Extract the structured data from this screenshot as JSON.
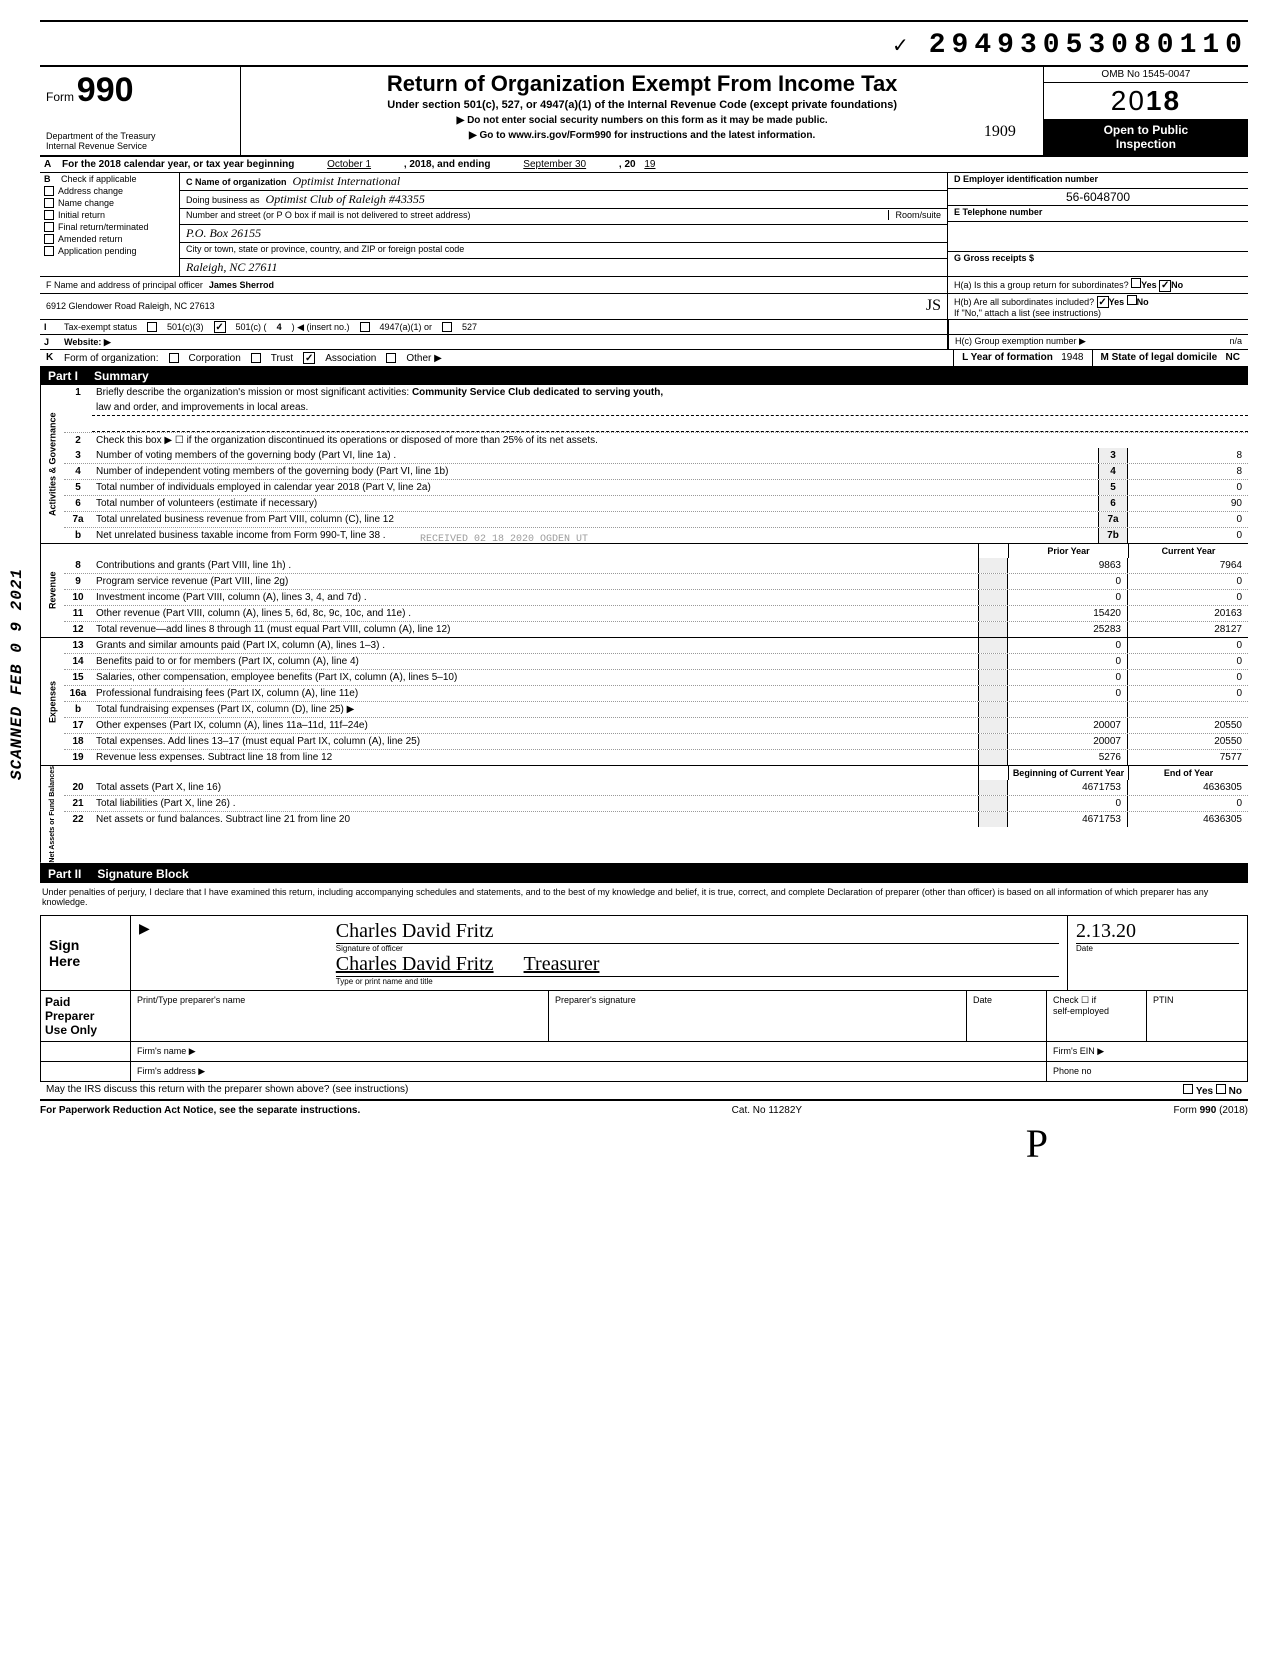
{
  "dln": "29493053080110",
  "scanned_stamp": "SCANNED FEB 0 9 2021",
  "form": {
    "number": "990",
    "title": "Return of Organization Exempt From Income Tax",
    "subtitle": "Under section 501(c), 527, or 4947(a)(1) of the Internal Revenue Code (except private foundations)",
    "note1": "▶ Do not enter social security numbers on this form as it may be made public.",
    "note2": "▶ Go to www.irs.gov/Form990 for instructions and the latest information.",
    "dept": "Department of the Treasury\nInternal Revenue Service",
    "omb": "OMB No  1545-0047",
    "year_display": "2018",
    "open_public": "Open to Public\nInspection",
    "hand_date": "1909"
  },
  "line_a": {
    "prefix": "For the 2018 calendar year, or tax year beginning",
    "begin": "October 1",
    "mid": ", 2018, and ending",
    "end": "September 30",
    "year_suffix": "19",
    "year_prefix": ", 20"
  },
  "check_labels": {
    "b": "Check if applicable",
    "addr": "Address change",
    "name": "Name change",
    "initial": "Initial return",
    "final": "Final return/terminated",
    "amended": "Amended return",
    "app": "Application pending"
  },
  "org": {
    "c_label": "C Name of organization",
    "c_value": "Optimist International",
    "dba_label": "Doing business as",
    "dba_value": "Optimist Club of Raleigh  #43355",
    "addr_label": "Number and street (or P O  box if mail is not delivered to street address)",
    "room_label": "Room/suite",
    "addr_value": "P.O. Box 26155",
    "city_label": "City or town, state or province, country, and ZIP or foreign postal code",
    "city_value": "Raleigh, NC  27611",
    "f_label": "F Name and address of principal officer",
    "f_name": "James Sherrod",
    "f_addr": "6912 Glendower Road   Raleigh, NC 27613"
  },
  "right_block": {
    "d_label": "D Employer identification number",
    "d_value": "56-6048700",
    "e_label": "E Telephone number",
    "g_label": "G Gross receipts $",
    "h_a": "H(a) Is this a group return for subordinates?",
    "h_b": "H(b) Are all subordinates included?",
    "h_b_note": "If \"No,\" attach a list  (see instructions)",
    "h_c": "H(c) Group exemption number ▶",
    "h_c_val": "n/a",
    "yes": "Yes",
    "no": "No"
  },
  "row_i": {
    "label": "Tax-exempt status",
    "opt1": "501(c)(3)",
    "opt2": "501(c) (",
    "insert": "4",
    "opt2_suffix": ") ◀ (insert no.)",
    "opt3": "4947(a)(1) or",
    "opt4": "527"
  },
  "row_j": {
    "label": "Website: ▶"
  },
  "row_k": {
    "label": "Form of organization:",
    "corp": "Corporation",
    "trust": "Trust",
    "assoc": "Association",
    "other": "Other ▶",
    "l_label": "L Year of formation",
    "l_val": "1948",
    "m_label": "M State of legal domicile",
    "m_val": "NC"
  },
  "part1": {
    "label": "Part I",
    "title": "Summary",
    "line1_label": "Briefly describe the organization's mission or most significant activities:",
    "line1_val": "Community Service Club dedicated to serving youth,",
    "line1_val2": "law and order, and improvements in local areas.",
    "line2": "Check this box ▶ ☐ if the organization discontinued its operations or disposed of more than 25% of its net assets.",
    "side_gov": "Activities & Governance",
    "side_rev": "Revenue",
    "side_exp": "Expenses",
    "side_net": "Net Assets or\nFund Balances",
    "prior_year": "Prior Year",
    "current_year": "Current Year",
    "boy": "Beginning of Current Year",
    "eoy": "End of Year"
  },
  "lines_gov": [
    {
      "n": "3",
      "t": "Number of voting members of the governing body (Part VI, line 1a) .",
      "box": "3",
      "cy": "8"
    },
    {
      "n": "4",
      "t": "Number of independent voting members of the governing body (Part VI, line 1b)",
      "box": "4",
      "cy": "8"
    },
    {
      "n": "5",
      "t": "Total number of individuals employed in calendar year 2018 (Part V, line 2a)",
      "box": "5",
      "cy": "0"
    },
    {
      "n": "6",
      "t": "Total number of volunteers (estimate if necessary)",
      "box": "6",
      "cy": "90"
    },
    {
      "n": "7a",
      "t": "Total unrelated business revenue from Part VIII, column (C), line 12",
      "box": "7a",
      "cy": "0"
    },
    {
      "n": "b",
      "t": "Net unrelated business taxable income from Form 990-T, line 38 .",
      "box": "7b",
      "cy": "0"
    }
  ],
  "lines_rev": [
    {
      "n": "8",
      "t": "Contributions and grants (Part VIII, line 1h) .",
      "py": "9863",
      "cy": "7964"
    },
    {
      "n": "9",
      "t": "Program service revenue (Part VIII, line 2g)",
      "py": "0",
      "cy": "0"
    },
    {
      "n": "10",
      "t": "Investment income (Part VIII, column (A), lines 3, 4, and 7d) .",
      "py": "0",
      "cy": "0"
    },
    {
      "n": "11",
      "t": "Other revenue (Part VIII, column (A), lines 5, 6d, 8c, 9c, 10c, and 11e) .",
      "py": "15420",
      "cy": "20163"
    },
    {
      "n": "12",
      "t": "Total revenue—add lines 8 through 11 (must equal Part VIII, column (A), line 12)",
      "py": "25283",
      "cy": "28127"
    }
  ],
  "lines_exp": [
    {
      "n": "13",
      "t": "Grants and similar amounts paid (Part IX, column (A), lines 1–3) .",
      "py": "0",
      "cy": "0"
    },
    {
      "n": "14",
      "t": "Benefits paid to or for members (Part IX, column (A), line 4)",
      "py": "0",
      "cy": "0"
    },
    {
      "n": "15",
      "t": "Salaries, other compensation, employee benefits (Part IX, column (A), lines 5–10)",
      "py": "0",
      "cy": "0"
    },
    {
      "n": "16a",
      "t": "Professional fundraising fees (Part IX, column (A), line 11e)",
      "py": "0",
      "cy": "0"
    },
    {
      "n": "b",
      "t": "Total fundraising expenses (Part IX, column (D), line 25) ▶",
      "py": "",
      "cy": ""
    },
    {
      "n": "17",
      "t": "Other expenses (Part IX, column (A), lines 11a–11d, 11f–24e)",
      "py": "20007",
      "cy": "20550"
    },
    {
      "n": "18",
      "t": "Total expenses. Add lines 13–17 (must equal Part IX, column (A), line 25)",
      "py": "20007",
      "cy": "20550"
    },
    {
      "n": "19",
      "t": "Revenue less expenses. Subtract line 18 from line 12",
      "py": "5276",
      "cy": "7577"
    }
  ],
  "lines_net": [
    {
      "n": "20",
      "t": "Total assets (Part X, line 16)",
      "py": "4671753",
      "cy": "4636305"
    },
    {
      "n": "21",
      "t": "Total liabilities (Part X, line 26) .",
      "py": "0",
      "cy": "0"
    },
    {
      "n": "22",
      "t": "Net assets or fund balances. Subtract line 21 from line 20",
      "py": "4671753",
      "cy": "4636305"
    }
  ],
  "part2": {
    "label": "Part II",
    "title": "Signature Block",
    "perjury": "Under penalties of perjury, I declare that I have examined this return, including accompanying schedules and statements, and to the best of my knowledge  and belief, it is true, correct, and complete  Declaration of preparer (other than officer) is based on all information of which preparer has any knowledge."
  },
  "sign": {
    "here": "Sign\nHere",
    "sig_script": "Charles David Fritz",
    "sig_label": "Signature of officer",
    "name_print": "Charles David Fritz",
    "title_print": "Treasurer",
    "name_label": "Type or print name and title",
    "date_label": "Date",
    "date_val": "2.13.20"
  },
  "prep": {
    "label": "Paid\nPreparer\nUse Only",
    "c1": "Print/Type preparer's name",
    "c2": "Preparer's signature",
    "c3": "Date",
    "c4_a": "Check ☐ if",
    "c4_b": "self-employed",
    "c5": "PTIN",
    "firm_name": "Firm's name    ▶",
    "firm_ein": "Firm's EIN ▶",
    "firm_addr": "Firm's address ▶",
    "phone": "Phone no"
  },
  "irs_discuss": "May the IRS discuss this return with the preparer shown above? (see instructions)",
  "footer": {
    "left": "For Paperwork Reduction Act Notice, see the separate instructions.",
    "mid": "Cat. No  11282Y",
    "right": "Form 990 (2018)"
  },
  "received_stamp": "RECEIVED 02 18 2020 OGDEN UT"
}
